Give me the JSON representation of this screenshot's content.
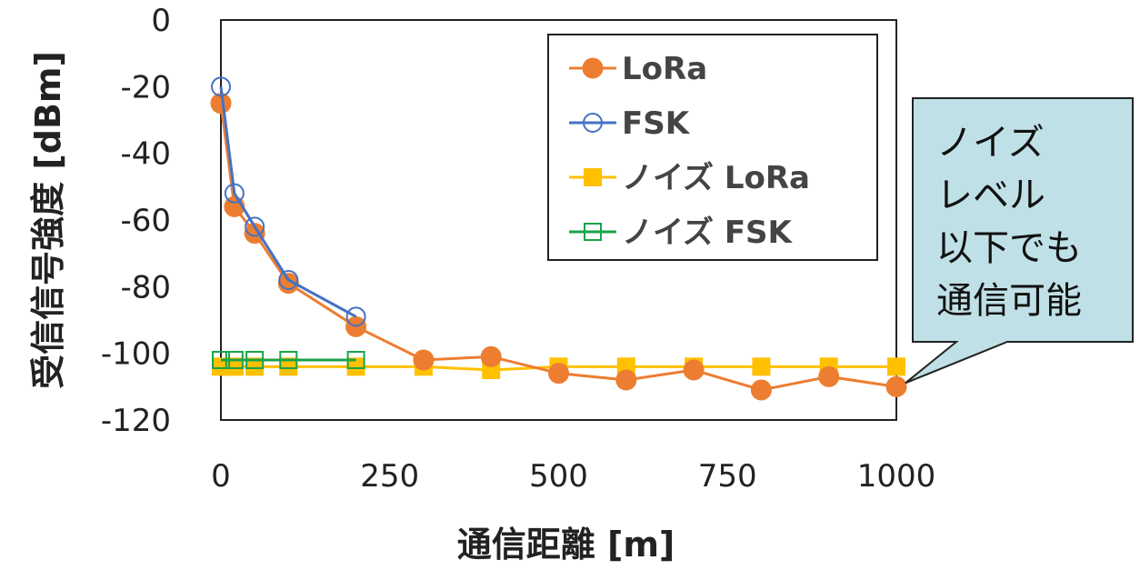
{
  "chart_data": {
    "type": "line",
    "xlabel": "通信距離 [m]",
    "ylabel": "受信信号強度 [dBm]",
    "xlim": [
      0,
      1000
    ],
    "ylim": [
      -120,
      0
    ],
    "xticks": [
      "0",
      "250",
      "500",
      "750",
      "1000"
    ],
    "yticks": [
      "0",
      "-20",
      "-40",
      "-60",
      "-80",
      "-100",
      "-120"
    ],
    "grid": false,
    "legend_position": "top-right",
    "series": [
      {
        "name": "LoRa",
        "color": "#ED7D31",
        "marker": "filled-circle",
        "points": [
          [
            0,
            -25
          ],
          [
            20,
            -56
          ],
          [
            50,
            -64
          ],
          [
            100,
            -79
          ],
          [
            200,
            -92
          ],
          [
            300,
            -102
          ],
          [
            400,
            -101
          ],
          [
            500,
            -106
          ],
          [
            600,
            -108
          ],
          [
            700,
            -105
          ],
          [
            800,
            -111
          ],
          [
            900,
            -107
          ],
          [
            1000,
            -110
          ]
        ]
      },
      {
        "name": "FSK",
        "color": "#4472C4",
        "marker": "open-circle",
        "points": [
          [
            0,
            -20
          ],
          [
            20,
            -52
          ],
          [
            50,
            -62
          ],
          [
            100,
            -78
          ],
          [
            200,
            -89
          ]
        ]
      },
      {
        "name": "ノイズ LoRa",
        "color": "#FFC000",
        "marker": "filled-square",
        "points": [
          [
            0,
            -104
          ],
          [
            20,
            -104
          ],
          [
            50,
            -104
          ],
          [
            100,
            -104
          ],
          [
            200,
            -104
          ],
          [
            300,
            -104
          ],
          [
            400,
            -105
          ],
          [
            500,
            -104
          ],
          [
            600,
            -104
          ],
          [
            700,
            -104
          ],
          [
            800,
            -104
          ],
          [
            900,
            -104
          ],
          [
            1000,
            -104
          ]
        ]
      },
      {
        "name": "ノイズ FSK",
        "color": "#1AA34A",
        "marker": "open-square",
        "points": [
          [
            0,
            -102
          ],
          [
            20,
            -102
          ],
          [
            50,
            -102
          ],
          [
            100,
            -102
          ],
          [
            200,
            -102
          ]
        ]
      }
    ],
    "annotation": {
      "lines": [
        "ノイズ",
        "レベル",
        "以下でも",
        "通信可能"
      ],
      "fill": "#BFE0E6",
      "points_to": [
        1000,
        -110
      ]
    }
  }
}
